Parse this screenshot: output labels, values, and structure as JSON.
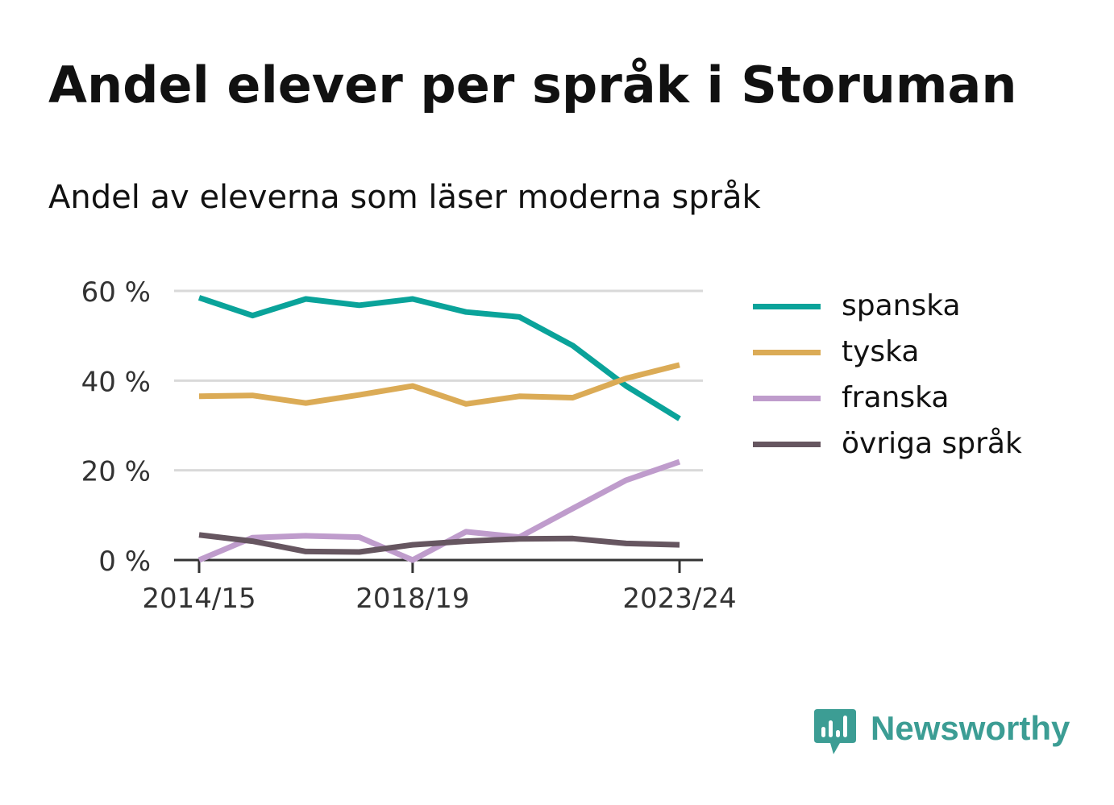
{
  "chart_data": {
    "type": "line",
    "title": "Andel elever per språk i Storuman",
    "subtitle": "Andel av eleverna som läser moderna språk",
    "x": [
      "2014/15",
      "2015/16",
      "2016/17",
      "2017/18",
      "2018/19",
      "2019/20",
      "2020/21",
      "2021/22",
      "2022/23",
      "2023/24"
    ],
    "x_tick_labels": [
      "2014/15",
      "2018/19",
      "2023/24"
    ],
    "y_ticks": [
      {
        "value": 0,
        "label": "0 %"
      },
      {
        "value": 20,
        "label": "20 %"
      },
      {
        "value": 40,
        "label": "40 %"
      },
      {
        "value": 60,
        "label": "60 %"
      }
    ],
    "ylim": [
      0,
      60
    ],
    "grid": true,
    "legend_position": "right",
    "series": [
      {
        "name": "spanska",
        "color": "#0aa39a",
        "values": [
          58.5,
          54.5,
          58.2,
          56.8,
          58.2,
          55.3,
          54.2,
          47.8,
          38.8,
          31.5
        ]
      },
      {
        "name": "tyska",
        "color": "#dbab56",
        "values": [
          36.5,
          36.7,
          35.0,
          36.8,
          38.8,
          34.8,
          36.5,
          36.2,
          40.5,
          43.5
        ]
      },
      {
        "name": "franska",
        "color": "#bf9ccc",
        "values": [
          0.0,
          5.0,
          5.4,
          5.1,
          0.0,
          6.3,
          5.1,
          11.5,
          17.8,
          21.9
        ]
      },
      {
        "name": "övriga språk",
        "color": "#665660",
        "values": [
          5.6,
          4.2,
          1.9,
          1.8,
          3.4,
          4.2,
          4.7,
          4.8,
          3.7,
          3.4
        ]
      }
    ]
  },
  "brand": {
    "name": "Newsworthy",
    "icon": "newsworthy-logo-icon",
    "color": "#3c9d94"
  }
}
